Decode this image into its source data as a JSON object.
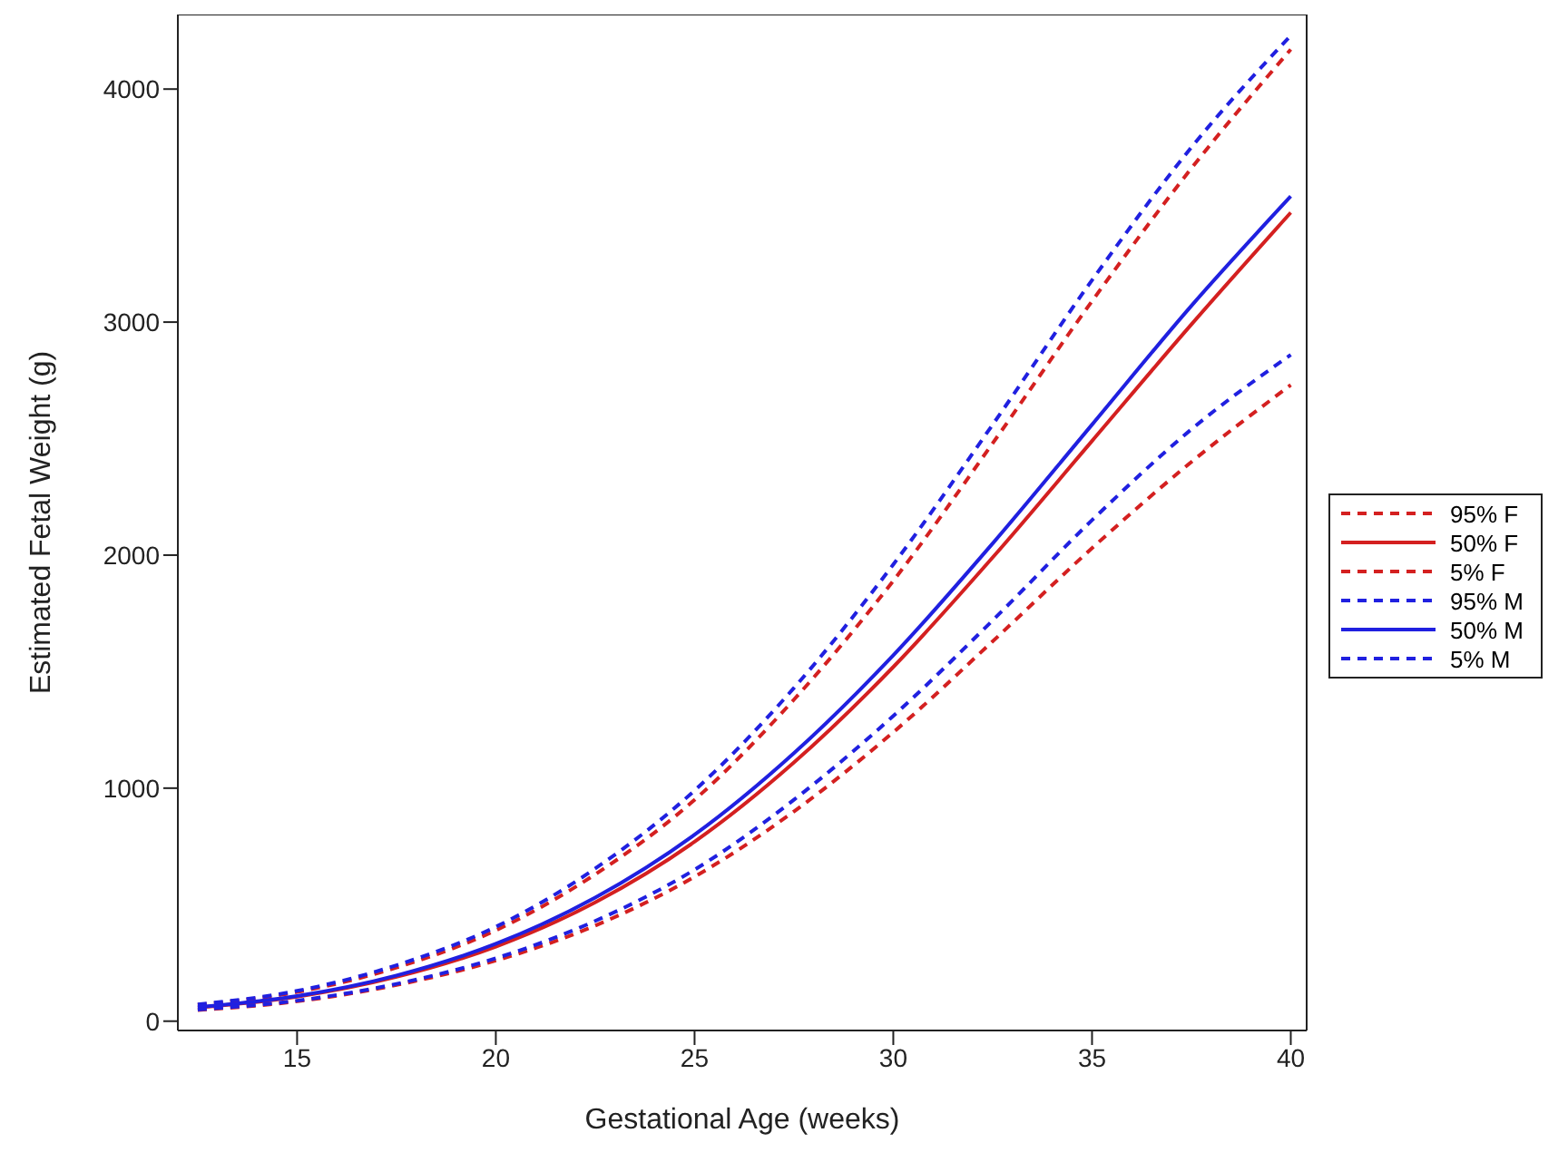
{
  "chart_data": {
    "type": "line",
    "xlabel": "Gestational Age (weeks)",
    "ylabel": "Estimated Fetal Weight (g)",
    "x": [
      12.5,
      15,
      17.5,
      20,
      22.5,
      25,
      27.5,
      30,
      32.5,
      35,
      37.5,
      40
    ],
    "xlim": [
      12,
      40.4
    ],
    "xticks": [
      15,
      20,
      25,
      30,
      35,
      40
    ],
    "ylim": [
      -40,
      4320
    ],
    "yticks": [
      0,
      1000,
      2000,
      3000,
      4000
    ],
    "grid": false,
    "legend": "right",
    "marker": "none",
    "series": [
      {
        "name": "95% F",
        "color": "#d42020",
        "line_style": "dashed",
        "values": [
          70,
          125,
          230,
          390,
          630,
          950,
          1380,
          1890,
          2480,
          3090,
          3660,
          4170
        ]
      },
      {
        "name": "50% F",
        "color": "#d42020",
        "line_style": "solid",
        "values": [
          58,
          105,
          190,
          320,
          510,
          770,
          1110,
          1520,
          1990,
          2490,
          2990,
          3470
        ]
      },
      {
        "name": "5% F",
        "color": "#d42020",
        "line_style": "dashed",
        "values": [
          48,
          85,
          155,
          260,
          410,
          620,
          900,
          1240,
          1630,
          2030,
          2400,
          2730
        ]
      },
      {
        "name": "95% M",
        "color": "#2020e0",
        "line_style": "dashed",
        "values": [
          72,
          130,
          240,
          405,
          655,
          990,
          1430,
          1960,
          2560,
          3180,
          3750,
          4230
        ]
      },
      {
        "name": "50% M",
        "color": "#2020e0",
        "line_style": "solid",
        "values": [
          60,
          108,
          196,
          332,
          530,
          800,
          1150,
          1570,
          2050,
          2560,
          3070,
          3540
        ]
      },
      {
        "name": "5% M",
        "color": "#2020e0",
        "line_style": "dashed",
        "values": [
          50,
          88,
          160,
          270,
          430,
          650,
          950,
          1310,
          1720,
          2150,
          2540,
          2860
        ]
      }
    ]
  }
}
